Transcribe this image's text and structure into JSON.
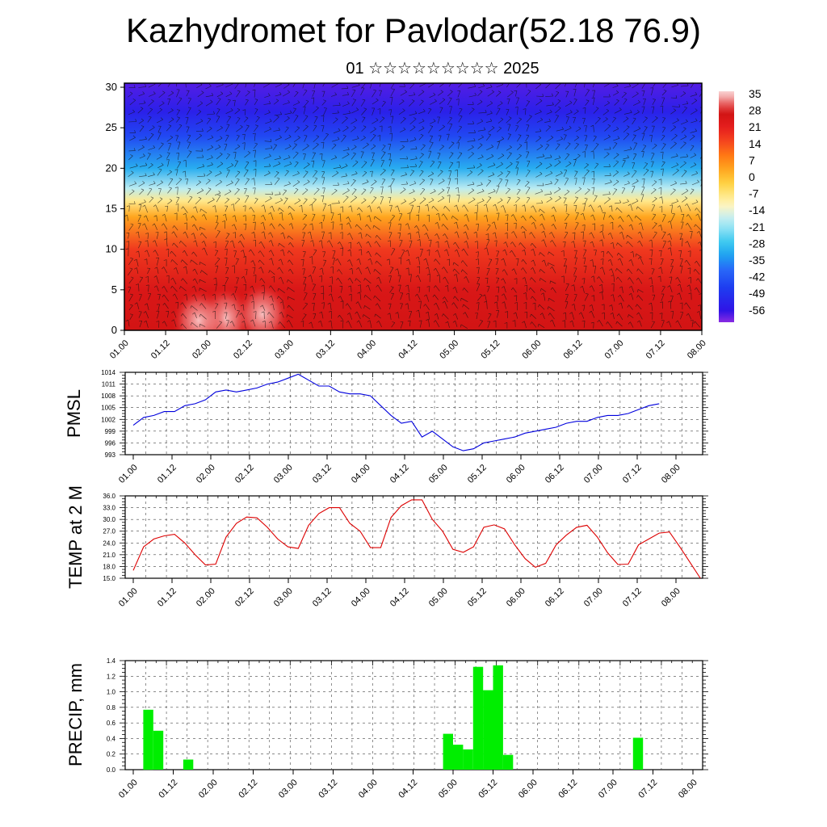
{
  "header": {
    "title": "Kazhydromet for Pavlodar(52.18 76.9)",
    "subtitle": "01 ☆☆☆☆☆☆☆☆☆ 2025"
  },
  "time_labels": [
    "01.00",
    "01.12",
    "02.00",
    "02.12",
    "03.00",
    "03.12",
    "04.00",
    "04.12",
    "05.00",
    "05.12",
    "06.00",
    "06.12",
    "07.00",
    "07.12",
    "08.00"
  ],
  "chart_data": [
    {
      "type": "heatmap",
      "title": "",
      "xlabel": "",
      "ylabel": "",
      "x": [
        "01.00",
        "01.12",
        "02.00",
        "02.12",
        "03.00",
        "03.12",
        "04.00",
        "04.12",
        "05.00",
        "05.12",
        "06.00",
        "06.12",
        "07.00",
        "07.12",
        "08.00"
      ],
      "y_ticks": [
        0,
        5,
        10,
        15,
        20,
        25,
        30
      ],
      "ylim": [
        0,
        30.5
      ],
      "colorbar": {
        "labels": [
          35,
          28,
          21,
          14,
          7,
          0,
          -7,
          -14,
          -21,
          -28,
          -35,
          -42,
          -49,
          -56
        ],
        "range": [
          -63,
          38
        ]
      },
      "profile": [
        {
          "h": 0,
          "v": 28
        },
        {
          "h": 5,
          "v": 26
        },
        {
          "h": 10,
          "v": 18
        },
        {
          "h": 14,
          "v": 4
        },
        {
          "h": 16,
          "v": -8
        },
        {
          "h": 17.5,
          "v": -18
        },
        {
          "h": 20,
          "v": -32
        },
        {
          "h": 24,
          "v": -46
        },
        {
          "h": 27,
          "v": -55
        },
        {
          "h": 30.5,
          "v": -60
        }
      ],
      "warm_spots": [
        {
          "x": 2.45,
          "h": 1.5,
          "v": 35
        },
        {
          "x": 3.35,
          "h": 2.0,
          "v": 34
        },
        {
          "x": 1.8,
          "h": 1.2,
          "v": 31
        }
      ],
      "overlay": "wind barbs"
    },
    {
      "type": "line",
      "title": "",
      "xlabel": "",
      "ylabel": "PMSL",
      "ylim": [
        993,
        1014
      ],
      "y_ticks": [
        993,
        996,
        999,
        1002,
        1005,
        1008,
        1011,
        1014
      ],
      "color": "#0000dd",
      "x_step_hours": 3,
      "values": [
        1000.5,
        1002.5,
        1003,
        1004,
        1004,
        1005.5,
        1006,
        1007,
        1009,
        1009.5,
        1009,
        1009.5,
        1010,
        1011,
        1011.5,
        1012.5,
        1013.5,
        1012,
        1010.5,
        1010.5,
        1009,
        1008.5,
        1008.5,
        1008,
        1005.5,
        1003,
        1001,
        1001.5,
        997.5,
        999,
        997,
        995,
        994,
        994.5,
        996,
        996.5,
        997,
        997.5,
        998.5,
        999,
        999.5,
        1000,
        1001,
        1001.5,
        1001.5,
        1002.5,
        1003,
        1003,
        1003.5,
        1004.5,
        1005.5,
        1006
      ]
    },
    {
      "type": "line",
      "title": "",
      "xlabel": "",
      "ylabel": "TEMP at 2 M",
      "ylim": [
        15,
        36
      ],
      "y_ticks": [
        "15.0",
        "18.0",
        "21.0",
        "24.0",
        "27.0",
        "30.0",
        "33.0",
        "36.0"
      ],
      "color": "#dd0000",
      "x_step_hours": 3,
      "values": [
        17,
        23,
        25,
        25.8,
        26.2,
        24,
        21,
        18.4,
        18.6,
        25.5,
        29,
        30.6,
        30.4,
        28,
        25,
        23,
        22.6,
        28.5,
        31.5,
        33,
        33,
        29,
        27,
        22.8,
        22.8,
        30.5,
        33.5,
        35,
        35,
        30,
        27,
        22.4,
        21.6,
        23,
        28,
        28.6,
        27.6,
        23.5,
        20,
        17.8,
        18.8,
        23.5,
        26,
        28,
        28.5,
        25.5,
        21.5,
        18.5,
        18.6,
        23.5,
        25,
        26.5,
        26.8,
        23,
        19,
        15
      ]
    },
    {
      "type": "bar",
      "title": "",
      "xlabel": "",
      "ylabel": "PRECIP, mm",
      "ylim": [
        0,
        1.4
      ],
      "y_ticks": [
        "0.0",
        "0.2",
        "0.4",
        "0.6",
        "0.8",
        "1.0",
        "1.2",
        "1.4"
      ],
      "color": "#00ee00",
      "bars": [
        {
          "t": 3,
          "v": 0.77
        },
        {
          "t": 6,
          "v": 0.5
        },
        {
          "t": 15,
          "v": 0.13
        },
        {
          "t": 93,
          "v": 0.46
        },
        {
          "t": 96,
          "v": 0.32
        },
        {
          "t": 99,
          "v": 0.26
        },
        {
          "t": 102,
          "v": 1.32
        },
        {
          "t": 105,
          "v": 1.02
        },
        {
          "t": 108,
          "v": 1.34
        },
        {
          "t": 111,
          "v": 0.19
        },
        {
          "t": 150,
          "v": 0.41
        }
      ]
    }
  ]
}
